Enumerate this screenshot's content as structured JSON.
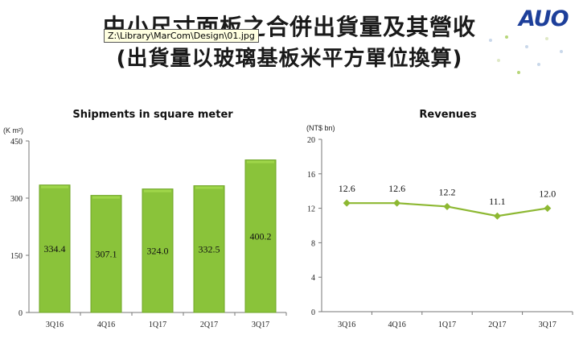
{
  "title_line1": "中小尺寸面板之合併出貨量及其營收",
  "title_line2": "(出貨量以玻璃基板米平方單位換算)",
  "tooltip_path": "Z:\\Library\\MarCom\\Design\\01.jpg",
  "logo_text": "AUO",
  "colors": {
    "bar": "#8ac33a",
    "bar_highlight": "#9fd64a",
    "line": "#8db832",
    "marker": "#8db832",
    "logo": "#1d3f9a"
  },
  "chart_data": [
    {
      "type": "bar",
      "title": "Shipments in square meter",
      "ylabel": "(K m²)",
      "categories": [
        "3Q16",
        "4Q16",
        "1Q17",
        "2Q17",
        "3Q17"
      ],
      "values": [
        334.4,
        307.1,
        324.0,
        332.5,
        400.2
      ],
      "labels": [
        "334.4",
        "307.1",
        "324.0",
        "332.5",
        "400.2"
      ],
      "ylim": [
        0,
        450
      ],
      "yticks": [
        0,
        150,
        300,
        450
      ],
      "grid": false
    },
    {
      "type": "line",
      "title": "Revenues",
      "ylabel": "(NT$ bn)",
      "categories": [
        "3Q16",
        "4Q16",
        "1Q17",
        "2Q17",
        "3Q17"
      ],
      "values": [
        12.6,
        12.6,
        12.2,
        11.1,
        12.0
      ],
      "labels": [
        "12.6",
        "12.6",
        "12.2",
        "11.1",
        "12.0"
      ],
      "ylim": [
        0,
        20
      ],
      "yticks": [
        0,
        4,
        8,
        12,
        16,
        20
      ],
      "grid": false
    }
  ]
}
